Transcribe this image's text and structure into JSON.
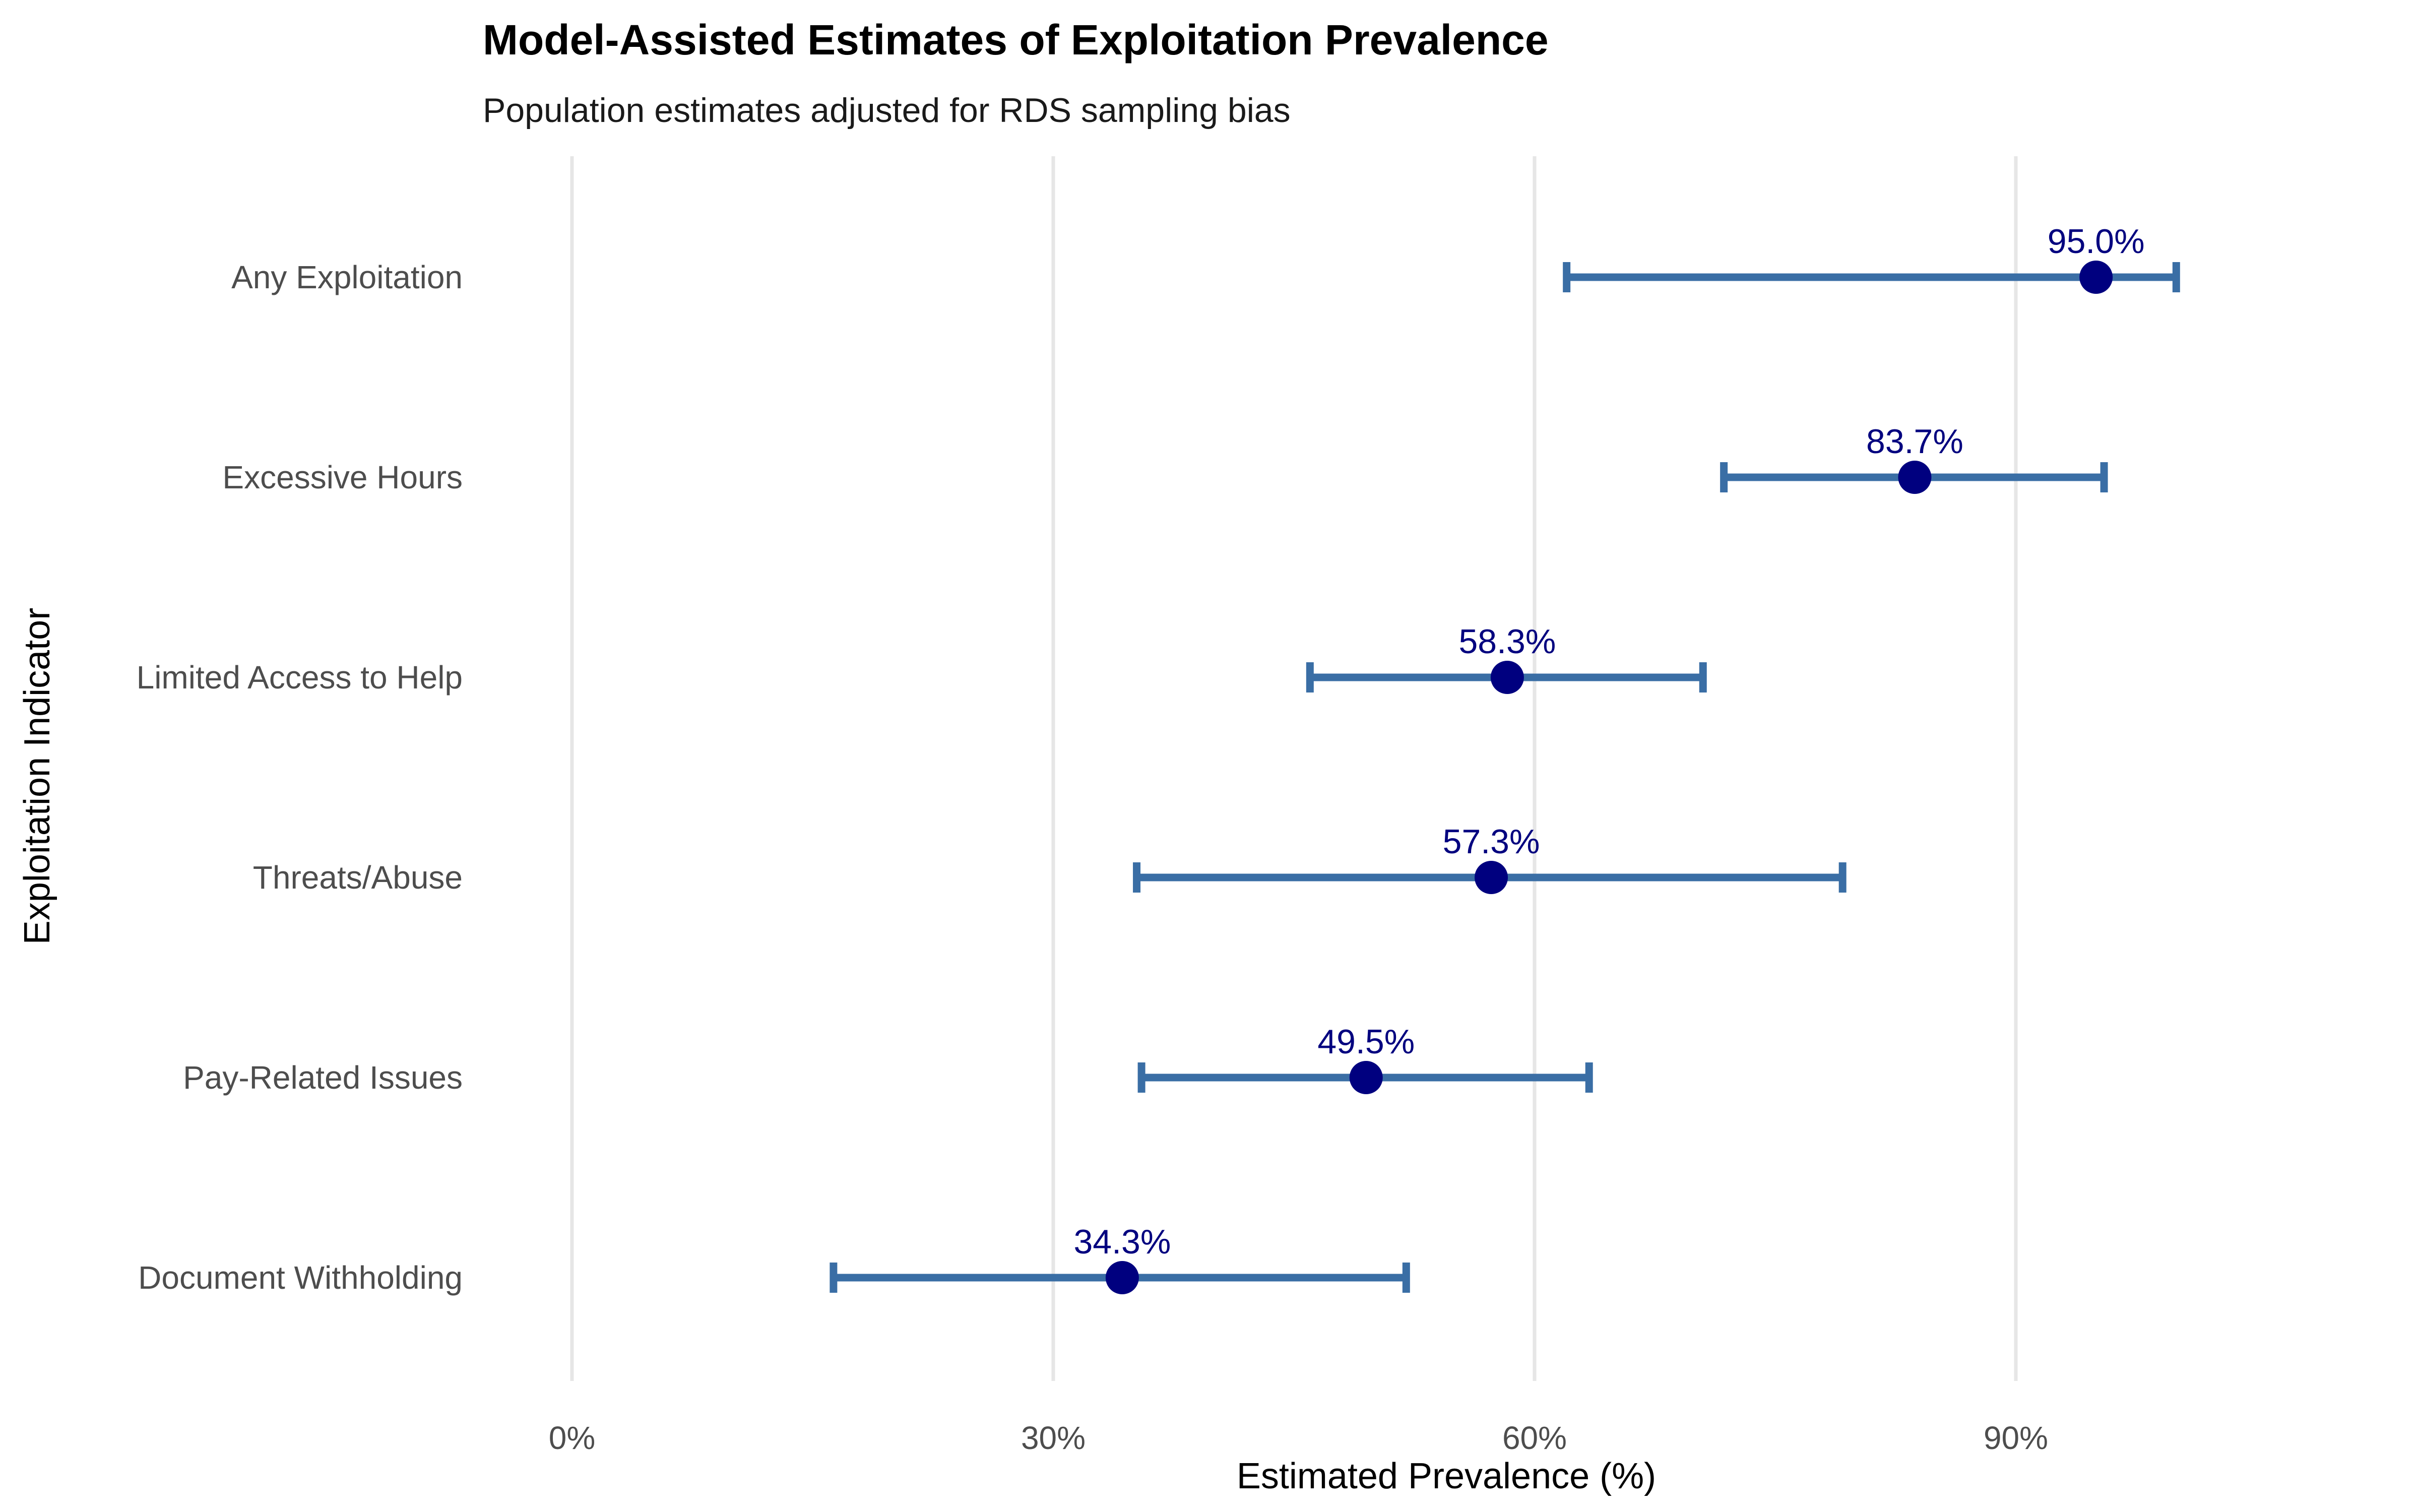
{
  "chart_data": {
    "type": "scatter",
    "subtype": "point-range",
    "orientation": "horizontal",
    "title": "Model-Assisted Estimates of Exploitation Prevalence",
    "subtitle": "Population estimates adjusted for RDS sampling bias",
    "xlabel": "Estimated Prevalence (%)",
    "ylabel": "Exploitation Indicator",
    "xlim": [
      0,
      100
    ],
    "x_ticks": [
      0,
      30,
      60,
      90
    ],
    "x_tick_labels": [
      "0%",
      "30%",
      "60%",
      "90%"
    ],
    "grid": "vertical-major",
    "legend": "none",
    "colors": {
      "point": "#00007f",
      "errorbar": "#3a6ea5",
      "label": "#00007f",
      "grid": "#e6e6e6"
    },
    "categories": [
      "Any Exploitation",
      "Excessive Hours",
      "Limited Access to Help",
      "Threats/Abuse",
      "Pay-Related Issues",
      "Document Withholding"
    ],
    "values": [
      95.0,
      83.7,
      58.3,
      57.3,
      49.5,
      34.3
    ],
    "lower": [
      62.0,
      71.8,
      46.0,
      35.2,
      35.5,
      16.3
    ],
    "upper": [
      100.0,
      95.5,
      70.5,
      79.2,
      63.4,
      52.0
    ],
    "value_labels": [
      "95.0%",
      "83.7%",
      "58.3%",
      "57.3%",
      "49.5%",
      "34.3%"
    ]
  }
}
